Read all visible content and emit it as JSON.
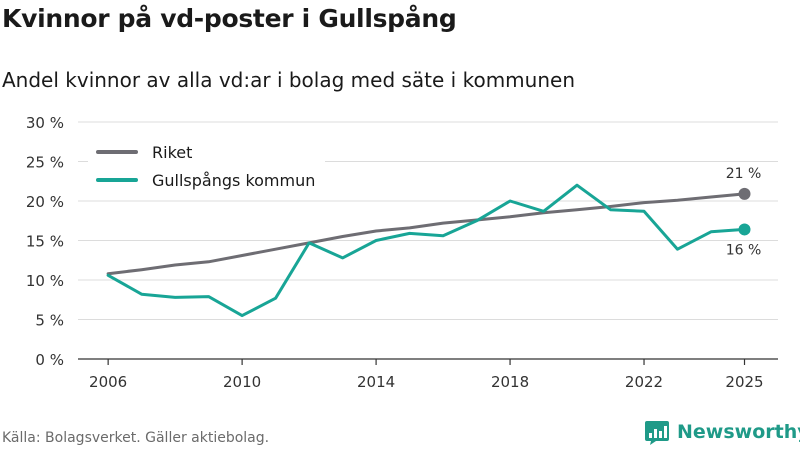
{
  "title": "Kvinnor på vd-poster i Gullspång",
  "subtitle": "Andel kvinnor av alla vd:ar i bolag med säte i kommunen",
  "source": "Källa: Bolagsverket. Gäller aktiebolag.",
  "brand": "Newsworthy",
  "colors": {
    "riket": "#6e6d73",
    "kommun": "#18a596",
    "grid": "#dcdcdc",
    "axis": "#333333"
  },
  "chart_data": {
    "type": "line",
    "title": "Kvinnor på vd-poster i Gullspång",
    "ylabel": "",
    "xlabel": "",
    "x": [
      2006,
      2007,
      2008,
      2009,
      2010,
      2011,
      2012,
      2013,
      2014,
      2015,
      2016,
      2017,
      2018,
      2019,
      2020,
      2021,
      2022,
      2023,
      2024,
      2025
    ],
    "xticks": [
      2006,
      2010,
      2014,
      2018,
      2022,
      2025
    ],
    "xlim": [
      2005.1,
      2026.0
    ],
    "ylim": [
      0,
      30
    ],
    "yticks": [
      0,
      5,
      10,
      15,
      20,
      25,
      30
    ],
    "ytick_labels": [
      "0 %",
      "5 %",
      "10 %",
      "15 %",
      "20 %",
      "25 %",
      "30 %"
    ],
    "legend_position": "top-left",
    "series": [
      {
        "name": "Riket",
        "color": "#6e6d73",
        "values": [
          10.8,
          11.3,
          11.9,
          12.3,
          13.1,
          13.9,
          14.7,
          15.5,
          16.2,
          16.6,
          17.2,
          17.6,
          18.0,
          18.5,
          18.9,
          19.3,
          19.8,
          20.1,
          20.5,
          20.9
        ],
        "end_label": "21 %"
      },
      {
        "name": "Gullspångs kommun",
        "color": "#18a596",
        "values": [
          10.6,
          8.2,
          7.8,
          7.9,
          5.5,
          7.7,
          14.7,
          12.8,
          15.0,
          15.9,
          15.6,
          17.5,
          20.0,
          18.7,
          22.0,
          18.9,
          18.7,
          13.9,
          16.1,
          16.4
        ],
        "end_label": "16 %"
      }
    ]
  }
}
